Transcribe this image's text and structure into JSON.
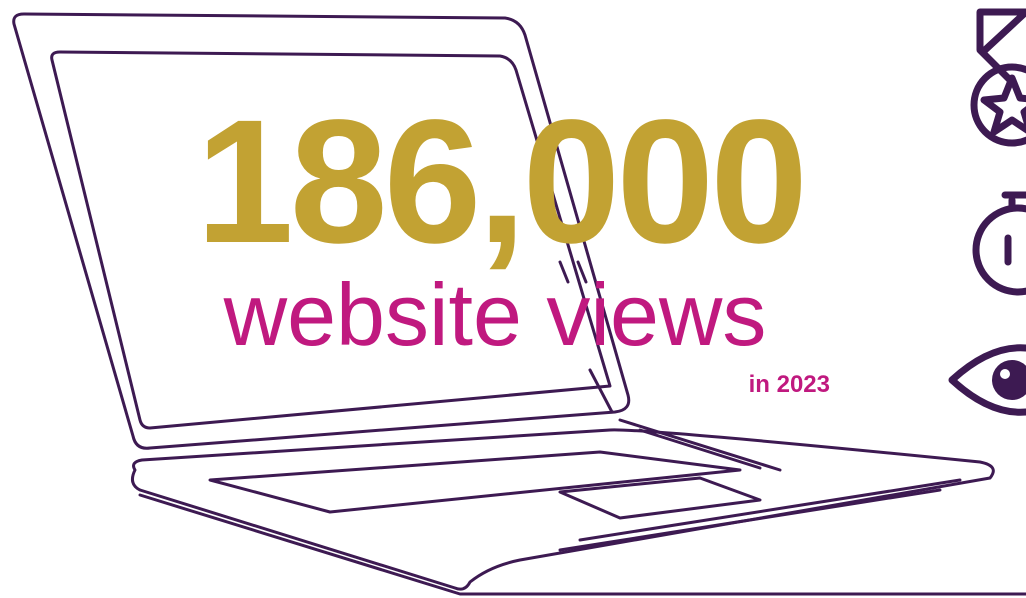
{
  "headline": {
    "figure": "186,000",
    "label": "website views",
    "period": "in 2023"
  }
}
